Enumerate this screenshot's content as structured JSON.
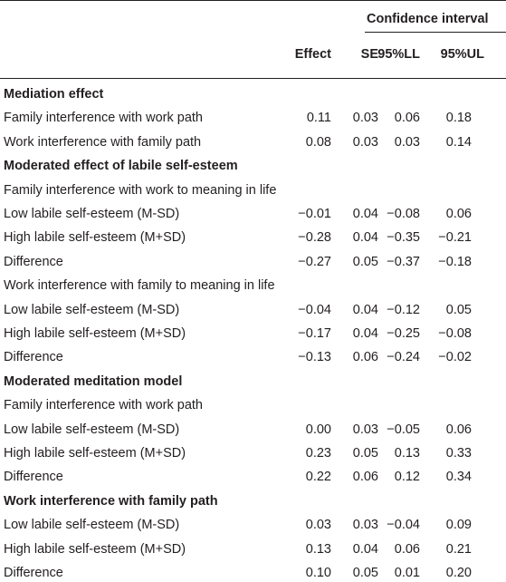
{
  "table": {
    "group_header": "Confidence interval",
    "columns": [
      "Effect",
      "SE",
      "95%LL",
      "95%UL"
    ],
    "rows": [
      {
        "label": "Mediation effect",
        "bold": true
      },
      {
        "label": "Family interference with work path",
        "values": [
          "0.11",
          "0.03",
          "0.06",
          "0.18"
        ]
      },
      {
        "label": "Work interference with family path",
        "values": [
          "0.08",
          "0.03",
          "0.03",
          "0.14"
        ]
      },
      {
        "label": "Moderated effect of labile self-esteem",
        "bold": true
      },
      {
        "label": "Family interference with work to meaning in life"
      },
      {
        "label": "Low labile self-esteem (M-SD)",
        "values": [
          "−0.01",
          "0.04",
          "−0.08",
          "0.06"
        ]
      },
      {
        "label": "High labile self-esteem (M+SD)",
        "values": [
          "−0.28",
          "0.04",
          "−0.35",
          "−0.21"
        ]
      },
      {
        "label": "Difference",
        "values": [
          "−0.27",
          "0.05",
          "−0.37",
          "−0.18"
        ]
      },
      {
        "label": "Work interference with family to meaning in life"
      },
      {
        "label": "Low labile self-esteem (M-SD)",
        "values": [
          "−0.04",
          "0.04",
          "−0.12",
          "0.05"
        ]
      },
      {
        "label": "High labile self-esteem (M+SD)",
        "values": [
          "−0.17",
          "0.04",
          "−0.25",
          "−0.08"
        ]
      },
      {
        "label": "Difference",
        "values": [
          "−0.13",
          "0.06",
          "−0.24",
          "−0.02"
        ]
      },
      {
        "label": "Moderated meditation model",
        "bold": true
      },
      {
        "label": "Family interference with work path"
      },
      {
        "label": "Low labile self-esteem (M-SD)",
        "values": [
          "0.00",
          "0.03",
          "−0.05",
          "0.06"
        ]
      },
      {
        "label": "High labile self-esteem (M+SD)",
        "values": [
          "0.23",
          "0.05",
          "0.13",
          "0.33"
        ]
      },
      {
        "label": "Difference",
        "values": [
          "0.22",
          "0.06",
          "0.12",
          "0.34"
        ]
      },
      {
        "label": "Work interference with family path",
        "bold": true
      },
      {
        "label": "Low labile self-esteem (M-SD)",
        "values": [
          "0.03",
          "0.03",
          "−0.04",
          "0.09"
        ]
      },
      {
        "label": "High labile self-esteem (M+SD)",
        "values": [
          "0.13",
          "0.04",
          "0.06",
          "0.21"
        ]
      },
      {
        "label": "Difference",
        "values": [
          "0.10",
          "0.05",
          "0.01",
          "0.20"
        ]
      }
    ]
  }
}
